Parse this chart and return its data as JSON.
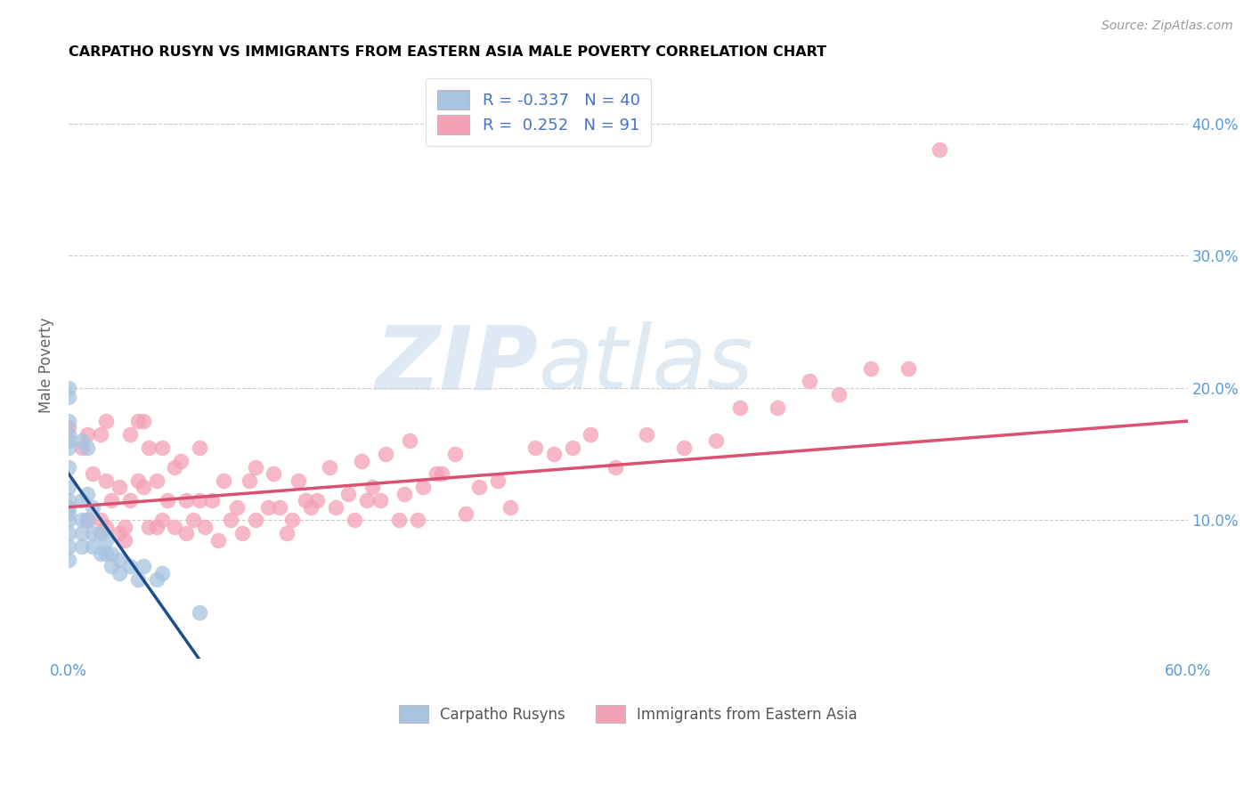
{
  "title": "CARPATHO RUSYN VS IMMIGRANTS FROM EASTERN ASIA MALE POVERTY CORRELATION CHART",
  "source": "Source: ZipAtlas.com",
  "ylabel": "Male Poverty",
  "ytick_labels": [
    "10.0%",
    "20.0%",
    "30.0%",
    "40.0%"
  ],
  "ytick_values": [
    0.1,
    0.2,
    0.3,
    0.4
  ],
  "xlim": [
    0.0,
    0.6
  ],
  "ylim": [
    -0.005,
    0.44
  ],
  "legend1_label": "R = -0.337   N = 40",
  "legend2_label": "R =  0.252   N = 91",
  "legend_bottom_label1": "Carpatho Rusyns",
  "legend_bottom_label2": "Immigrants from Eastern Asia",
  "blue_color": "#a8c4e0",
  "blue_line_color": "#1b4f8a",
  "pink_color": "#f4a0b5",
  "pink_line_color": "#d95070",
  "watermark_zip": "ZIP",
  "watermark_atlas": "atlas",
  "blue_scatter_x": [
    0.0,
    0.0,
    0.0,
    0.0,
    0.0,
    0.0,
    0.0,
    0.0,
    0.0,
    0.0,
    0.0,
    0.0,
    0.0,
    0.0,
    0.0,
    0.007,
    0.007,
    0.007,
    0.007,
    0.007,
    0.01,
    0.01,
    0.01,
    0.013,
    0.013,
    0.013,
    0.017,
    0.017,
    0.02,
    0.02,
    0.023,
    0.023,
    0.027,
    0.027,
    0.033,
    0.037,
    0.04,
    0.047,
    0.05,
    0.07
  ],
  "blue_scatter_y": [
    0.2,
    0.193,
    0.175,
    0.165,
    0.16,
    0.155,
    0.14,
    0.125,
    0.115,
    0.11,
    0.105,
    0.1,
    0.09,
    0.08,
    0.07,
    0.16,
    0.115,
    0.1,
    0.09,
    0.08,
    0.155,
    0.12,
    0.1,
    0.11,
    0.09,
    0.08,
    0.09,
    0.075,
    0.085,
    0.075,
    0.075,
    0.065,
    0.07,
    0.06,
    0.065,
    0.055,
    0.065,
    0.055,
    0.06,
    0.03
  ],
  "pink_scatter_x": [
    0.0,
    0.007,
    0.01,
    0.01,
    0.013,
    0.017,
    0.017,
    0.02,
    0.02,
    0.02,
    0.023,
    0.027,
    0.027,
    0.03,
    0.03,
    0.033,
    0.033,
    0.037,
    0.037,
    0.04,
    0.04,
    0.043,
    0.043,
    0.047,
    0.047,
    0.05,
    0.05,
    0.053,
    0.057,
    0.057,
    0.06,
    0.063,
    0.063,
    0.067,
    0.07,
    0.07,
    0.073,
    0.077,
    0.08,
    0.083,
    0.087,
    0.09,
    0.093,
    0.097,
    0.1,
    0.1,
    0.107,
    0.11,
    0.113,
    0.117,
    0.12,
    0.123,
    0.127,
    0.13,
    0.133,
    0.14,
    0.143,
    0.15,
    0.153,
    0.157,
    0.16,
    0.163,
    0.167,
    0.17,
    0.177,
    0.18,
    0.183,
    0.187,
    0.19,
    0.197,
    0.2,
    0.207,
    0.213,
    0.22,
    0.23,
    0.237,
    0.25,
    0.26,
    0.27,
    0.28,
    0.293,
    0.31,
    0.33,
    0.347,
    0.36,
    0.38,
    0.397,
    0.413,
    0.43,
    0.45,
    0.467
  ],
  "pink_scatter_y": [
    0.17,
    0.155,
    0.165,
    0.1,
    0.135,
    0.165,
    0.1,
    0.175,
    0.13,
    0.095,
    0.115,
    0.125,
    0.09,
    0.095,
    0.085,
    0.165,
    0.115,
    0.175,
    0.13,
    0.175,
    0.125,
    0.155,
    0.095,
    0.13,
    0.095,
    0.155,
    0.1,
    0.115,
    0.14,
    0.095,
    0.145,
    0.115,
    0.09,
    0.1,
    0.155,
    0.115,
    0.095,
    0.115,
    0.085,
    0.13,
    0.1,
    0.11,
    0.09,
    0.13,
    0.14,
    0.1,
    0.11,
    0.135,
    0.11,
    0.09,
    0.1,
    0.13,
    0.115,
    0.11,
    0.115,
    0.14,
    0.11,
    0.12,
    0.1,
    0.145,
    0.115,
    0.125,
    0.115,
    0.15,
    0.1,
    0.12,
    0.16,
    0.1,
    0.125,
    0.135,
    0.135,
    0.15,
    0.105,
    0.125,
    0.13,
    0.11,
    0.155,
    0.15,
    0.155,
    0.165,
    0.14,
    0.165,
    0.155,
    0.16,
    0.185,
    0.185,
    0.205,
    0.195,
    0.215,
    0.215,
    0.38
  ],
  "blue_line_x": [
    0.0,
    0.07
  ],
  "blue_line_y_start": 0.135,
  "blue_line_y_end": -0.005,
  "pink_line_x": [
    0.0,
    0.6
  ],
  "pink_line_y_start": 0.11,
  "pink_line_y_end": 0.175
}
